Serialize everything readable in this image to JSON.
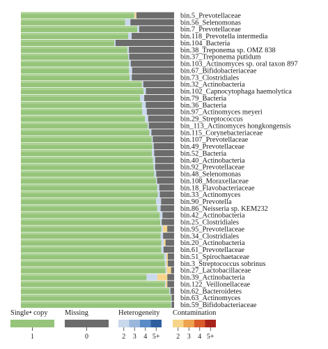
{
  "chart_data": {
    "type": "bar",
    "orientation": "horizontal",
    "stacked": true,
    "xlim": [
      0,
      1
    ],
    "categories": [
      "bin.5_Prevotellaceae",
      "bin.56_Selenomonas",
      "bin.7_Prevotellaceae",
      "bin.118_Prevotella intermedia",
      "bin.104_Bacteria",
      "bin.38_Treponema sp. OMZ 838",
      "bin.37_Treponema putidum",
      "bin.103_Actinomyces sp. oral taxon 897",
      "bin.67_Bifidobacteriaceae",
      "bin.73_Clostridiales",
      "bin.32_Actinobacteria",
      "bin.102_Capnocytophaga haemolytica",
      "bin.79_Bacteria",
      "bin.36_Bacteria",
      "bin.97_Actinomyces meyeri",
      "bin.29_Streptococcus",
      "bin_113_Actinomyces hongkongensis",
      "bin.115_Corynebacteriaceae",
      "bin.107_Prevotellaceae",
      "bin.49_Prevotellaceae",
      "bin.52_Bacteria",
      "bin.40_Actinobacteria",
      "bin.92_Prevotellaceae",
      "bin.48_Selenomonas",
      "bin.108_Moraxellaceae",
      "bin.18_Flavobacteriaceae",
      "bin.33_Actinomyces",
      "bin.90_Prevotella",
      "bin.86_Neisseria sp. KEM232",
      "bin.42_Actinobacteria",
      "bin.25_Clostridiales",
      "bin.95_Prevotellaceae",
      "bin.34_Clostridiales",
      "bin.20_Actinobacteria",
      "bin.61_Prevotellaceae",
      "bin.51_Spirochaetaceae",
      "bin.3_Streptococcus sobrinus",
      "bin.27_Lactobacillaceae",
      "bin.39_Actinobacteria",
      "bin.122_Veillonellaceae",
      "bin.62_Bacteroidetes",
      "bin.63_Actinomyces",
      "bin.59_Bifidobacteriaceae"
    ],
    "series": [
      {
        "name": "Single copy",
        "values": [
          0.74,
          0.68,
          0.76,
          0.7,
          0.61,
          0.695,
          0.7,
          0.706,
          0.706,
          0.71,
          0.79,
          0.8,
          0.778,
          0.79,
          0.791,
          0.81,
          0.827,
          0.839,
          0.854,
          0.858,
          0.855,
          0.862,
          0.866,
          0.87,
          0.882,
          0.89,
          0.893,
          0.882,
          0.89,
          0.906,
          0.91,
          0.917,
          0.912,
          0.916,
          0.916,
          0.934,
          0.94,
          0.944,
          0.82,
          0.94,
          0.968,
          0.98,
          0.98
        ]
      },
      {
        "name": "Heterogeneity",
        "values": [
          0.004,
          0.035,
          0.012,
          0.023,
          0.008,
          0.01,
          0.007,
          0.011,
          0.02,
          0.014,
          0.009,
          0.016,
          0.027,
          0.025,
          0.031,
          0.021,
          0.008,
          0.013,
          0.007,
          0.009,
          0.015,
          0.014,
          0.01,
          0.013,
          0.007,
          0.013,
          0.014,
          0.033,
          0.022,
          0.018,
          0.009,
          0.011,
          0.016,
          0.017,
          0.015,
          0.016,
          0.01,
          0.009,
          0.07,
          0.006,
          0.008,
          0.004,
          0.004
        ]
      },
      {
        "name": "Contamination",
        "values": [
          0.01,
          0.0,
          0.0,
          0.0,
          0.0,
          0.0,
          0.0,
          0.0,
          0.0,
          0.0,
          0.0,
          0.0,
          0.0,
          0.0,
          0.0,
          0.0,
          0.0,
          0.0,
          0.0,
          0.0,
          0.0,
          0.0,
          0.0,
          0.0,
          0.0,
          0.0,
          0.0,
          0.0,
          0.0,
          0.0,
          0.0,
          0.027,
          0.0,
          0.011,
          0.0,
          0.009,
          0.009,
          0.027,
          0.066,
          0.01,
          0.0,
          0.0,
          0.0
        ]
      },
      {
        "name": "Missing",
        "values": [
          0.246,
          0.285,
          0.228,
          0.277,
          0.382,
          0.295,
          0.293,
          0.283,
          0.274,
          0.276,
          0.201,
          0.184,
          0.195,
          0.185,
          0.178,
          0.169,
          0.165,
          0.148,
          0.139,
          0.133,
          0.13,
          0.124,
          0.124,
          0.117,
          0.111,
          0.097,
          0.093,
          0.085,
          0.088,
          0.076,
          0.081,
          0.045,
          0.072,
          0.056,
          0.069,
          0.041,
          0.041,
          0.02,
          0.044,
          0.044,
          0.024,
          0.016,
          0.016
        ]
      }
    ],
    "colors": {
      "single_copy": "#95c47a",
      "single_copy_stripe": "#b2d69b",
      "missing": "#6b6b6b",
      "heterogeneity": [
        "#c9d8ec",
        "#9ab7db",
        "#5a8bc7",
        "#2d5f9f"
      ],
      "contamination": [
        "#f6d48a",
        "#eda24e",
        "#d95b2a",
        "#a8241b"
      ]
    },
    "legend": {
      "position": "bottom",
      "single_copy": {
        "title": "Single• copy",
        "tick": "1"
      },
      "missing": {
        "title": "Missing",
        "tick": "0"
      },
      "heterogeneity": {
        "title": "Heterogeneity",
        "ticks": [
          "2",
          "3",
          "4",
          "5+"
        ]
      },
      "contamination": {
        "title": "Contamination",
        "ticks": [
          "2",
          "3",
          "4",
          "5+"
        ]
      }
    }
  }
}
